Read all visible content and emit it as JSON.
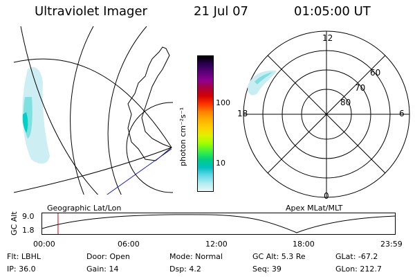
{
  "header": {
    "instrument": "Ultraviolet Imager",
    "date": "21 Jul 07",
    "time": "01:05:00 UT"
  },
  "geo_panel": {
    "label": "Geographic Lat/Lon"
  },
  "apex_panel": {
    "label": "Apex MLat/MLT",
    "mlt_labels": [
      "12",
      "18",
      "6",
      "0"
    ],
    "lat_labels": [
      "60",
      "70",
      "80"
    ]
  },
  "colorbar": {
    "unit_label": "photon cm⁻²s⁻¹",
    "ticks": [
      "100",
      "10"
    ],
    "colors": [
      "#000000",
      "#2a0050",
      "#5a0078",
      "#8a0090",
      "#aa0040",
      "#d00000",
      "#ff3000",
      "#ff8000",
      "#ffb000",
      "#ffd000",
      "#e0f000",
      "#a0ff00",
      "#40f040",
      "#00d080",
      "#00c0c0",
      "#60d8e8",
      "#b0ecf0",
      "#e8f8f8"
    ]
  },
  "altitude_plot": {
    "ylabel": "GC Alt",
    "y_ticks": [
      "9.0",
      "1.8"
    ],
    "x_ticks": [
      "00:00",
      "06:00",
      "12:00",
      "18:00",
      "23:59"
    ],
    "current_time_fraction": 0.045,
    "curve_color": "#000000",
    "marker_color": "#cc0000"
  },
  "info": {
    "filter": "Flt: LBHL",
    "ip": "IP: 36.0",
    "door": "Door: Open",
    "gain": "Gain: 14",
    "mode": "Mode: Normal",
    "dsp": "Dsp:    4.2",
    "gc_alt": "GC Alt: 5.3 Re",
    "seq": "Seq: 39",
    "glat": "GLat: -67.2",
    "glon": "GLon: 212.7"
  }
}
